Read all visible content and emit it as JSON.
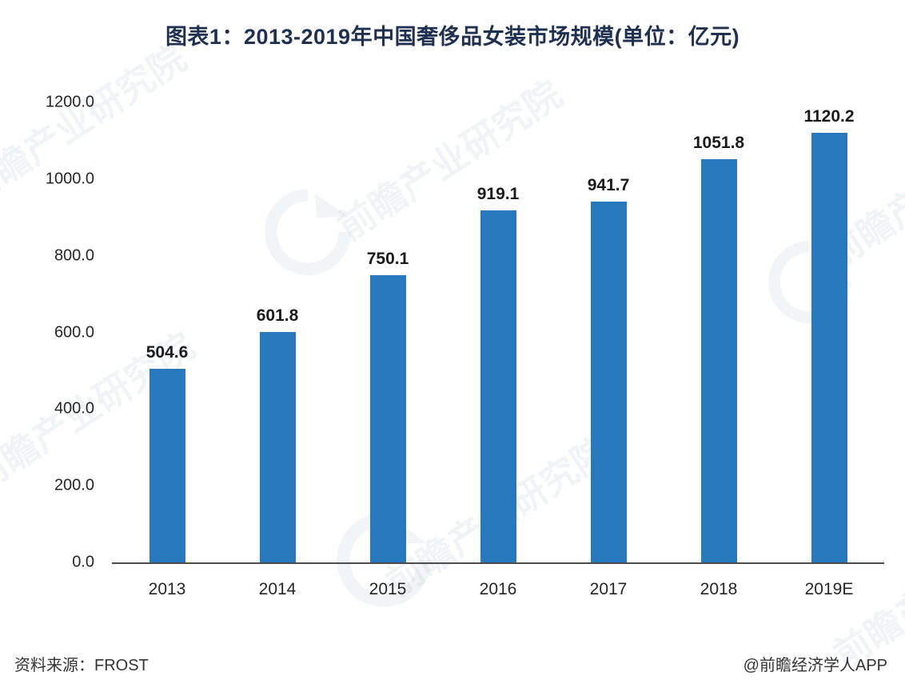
{
  "title": "图表1：2013-2019年中国奢侈品女装市场规模(单位：亿元)",
  "chart_data": {
    "type": "bar",
    "title": "图表1：2013-2019年中国奢侈品女装市场规模(单位：亿元)",
    "categories": [
      "2013",
      "2014",
      "2015",
      "2016",
      "2017",
      "2018",
      "2019E"
    ],
    "values": [
      504.6,
      601.8,
      750.1,
      919.1,
      941.7,
      1051.8,
      1120.2
    ],
    "xlabel": "",
    "ylabel": "",
    "ylim": [
      0,
      1200
    ],
    "yticks": [
      "1200.0",
      "1000.0",
      "800.0",
      "600.0",
      "400.0",
      "200.0",
      "0.0"
    ],
    "grid": "off",
    "legend": "none",
    "bar_color": "#2878bd"
  },
  "footer": {
    "source": "资料来源：FROST",
    "credit": "@前瞻经济学人APP"
  },
  "watermark": {
    "text": "前瞻产业研究院"
  },
  "colors": {
    "bar": "#2878bd",
    "title": "#1f3050",
    "axis_line": "#4d4d4d"
  }
}
